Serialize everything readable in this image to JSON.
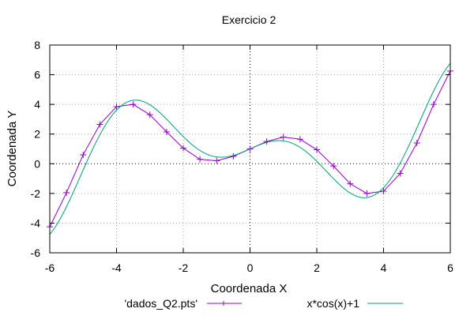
{
  "chart_data": {
    "type": "line",
    "title": "Exercicio 2",
    "xlabel": "Coordenada X",
    "ylabel": "Coordenada Y",
    "xlim": [
      -6,
      6
    ],
    "ylim": [
      -6,
      8
    ],
    "xticks": [
      -6,
      -4,
      -2,
      0,
      2,
      4,
      6
    ],
    "yticks": [
      -6,
      -4,
      -2,
      0,
      2,
      4,
      6,
      8
    ],
    "xtick_labels": [
      "-6",
      "-4",
      "-2",
      "0",
      "2",
      "4",
      "6"
    ],
    "ytick_labels": [
      "-6",
      "-4",
      "-2",
      "0",
      "2",
      "4",
      "6",
      "8"
    ],
    "grid": true,
    "legend_position": "bottom",
    "series": [
      {
        "name": "'dados_Q2.pts'",
        "color": "#9400d3",
        "marker": "plus",
        "x": [
          -6,
          -5.5,
          -5,
          -4.5,
          -4,
          -3.5,
          -3,
          -2.5,
          -2,
          -1.5,
          -1,
          -0.5,
          0,
          0.5,
          1,
          1.5,
          2,
          2.5,
          3,
          3.5,
          4,
          4.5,
          5,
          5.5,
          6
        ],
        "y": [
          -4.25,
          -1.95,
          0.6,
          2.65,
          3.85,
          4.0,
          3.3,
          2.15,
          1.05,
          0.3,
          0.2,
          0.5,
          1.0,
          1.5,
          1.8,
          1.65,
          0.95,
          -0.15,
          -1.35,
          -2.0,
          -1.85,
          -0.65,
          1.4,
          4.0,
          6.25
        ]
      },
      {
        "name": "x*cos(x)+1",
        "color": "#009e73",
        "marker": "none",
        "function": "x*cos(x)+1"
      }
    ]
  }
}
